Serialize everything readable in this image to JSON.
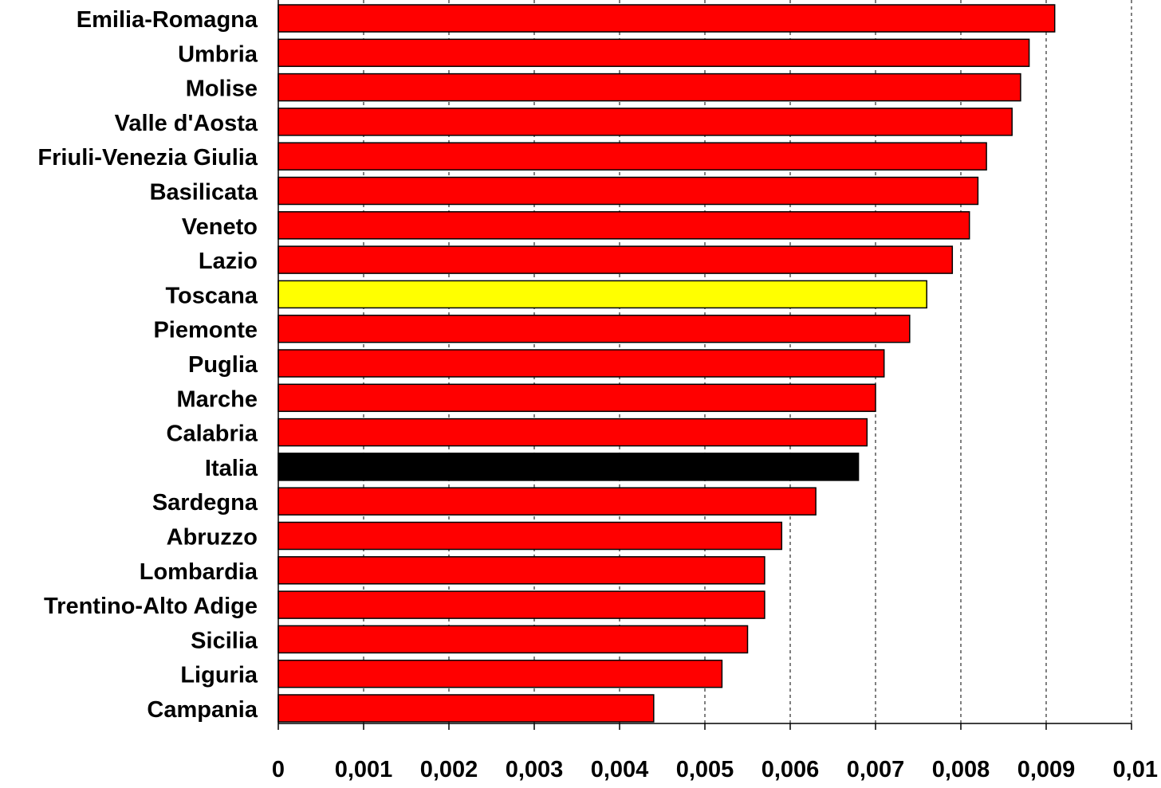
{
  "chart_data": {
    "type": "bar",
    "orientation": "horizontal",
    "title": "",
    "xlabel": "",
    "ylabel": "",
    "xlim": [
      0,
      0.01
    ],
    "x_ticks": [
      0,
      0.001,
      0.002,
      0.003,
      0.004,
      0.005,
      0.006,
      0.007,
      0.008,
      0.009,
      0.01
    ],
    "x_tick_labels": [
      "0",
      "0,001",
      "0,002",
      "0,003",
      "0,004",
      "0,005",
      "0,006",
      "0,007",
      "0,008",
      "0,009",
      "0,01"
    ],
    "grid": "vertical dashed",
    "legend": "none",
    "categories": [
      "Emilia-Romagna",
      "Umbria",
      "Molise",
      "Valle d'Aosta",
      "Friuli-Venezia Giulia",
      "Basilicata",
      "Veneto",
      "Lazio",
      "Toscana",
      "Piemonte",
      "Puglia",
      "Marche",
      "Calabria",
      "Italia",
      "Sardegna",
      "Abruzzo",
      "Lombardia",
      "Trentino-Alto Adige",
      "Sicilia",
      "Liguria",
      "Campania"
    ],
    "values": [
      0.0091,
      0.0088,
      0.0087,
      0.0086,
      0.0083,
      0.0082,
      0.0081,
      0.0079,
      0.0076,
      0.0074,
      0.0071,
      0.007,
      0.0069,
      0.0068,
      0.0063,
      0.0059,
      0.0057,
      0.0057,
      0.0055,
      0.0052,
      0.0044
    ],
    "bar_colors": [
      "#ff0000",
      "#ff0000",
      "#ff0000",
      "#ff0000",
      "#ff0000",
      "#ff0000",
      "#ff0000",
      "#ff0000",
      "#ffff00",
      "#ff0000",
      "#ff0000",
      "#ff0000",
      "#ff0000",
      "#000000",
      "#ff0000",
      "#ff0000",
      "#ff0000",
      "#ff0000",
      "#ff0000",
      "#ff0000",
      "#ff0000"
    ]
  }
}
